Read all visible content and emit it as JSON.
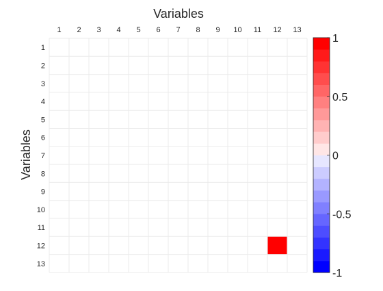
{
  "chart_data": {
    "type": "heatmap",
    "title": "",
    "xlabel": "Variables",
    "ylabel": "Variables",
    "x_categories": [
      "1",
      "2",
      "3",
      "4",
      "5",
      "6",
      "7",
      "8",
      "9",
      "10",
      "11",
      "12",
      "13"
    ],
    "y_categories": [
      "1",
      "2",
      "3",
      "4",
      "5",
      "6",
      "7",
      "8",
      "9",
      "10",
      "11",
      "12",
      "13"
    ],
    "x_axis_position": "top",
    "values": [
      [
        0,
        0,
        0,
        0,
        0,
        0,
        0,
        0,
        0,
        0,
        0,
        0,
        0
      ],
      [
        0,
        0,
        0,
        0,
        0,
        0,
        0,
        0,
        0,
        0,
        0,
        0,
        0
      ],
      [
        0,
        0,
        0,
        0,
        0,
        0,
        0,
        0,
        0,
        0,
        0,
        0,
        0
      ],
      [
        0,
        0,
        0,
        0,
        0,
        0,
        0,
        0,
        0,
        0,
        0,
        0,
        0
      ],
      [
        0,
        0,
        0,
        0,
        0,
        0,
        0,
        0,
        0,
        0,
        0,
        0,
        0
      ],
      [
        0,
        0,
        0,
        0,
        0,
        0,
        0,
        0,
        0,
        0,
        0,
        0,
        0
      ],
      [
        0,
        0,
        0,
        0,
        0,
        0,
        0,
        0,
        0,
        0,
        0,
        0,
        0
      ],
      [
        0,
        0,
        0,
        0,
        0,
        0,
        0,
        0,
        0,
        0,
        0,
        0,
        0
      ],
      [
        0,
        0,
        0,
        0,
        0,
        0,
        0,
        0,
        0,
        0,
        0,
        0,
        0
      ],
      [
        0,
        0,
        0,
        0,
        0,
        0,
        0,
        0,
        0,
        0,
        0,
        0,
        0
      ],
      [
        0,
        0,
        0,
        0,
        0,
        0,
        0,
        0,
        0,
        0,
        0,
        0,
        0
      ],
      [
        0,
        0,
        0,
        0,
        0,
        0,
        0,
        0,
        0,
        0,
        0,
        1,
        0
      ],
      [
        0,
        0,
        0,
        0,
        0,
        0,
        0,
        0,
        0,
        0,
        0,
        0,
        0
      ]
    ],
    "colorbar": {
      "range": [
        -1,
        1
      ],
      "ticks": [
        1,
        0.5,
        0,
        -0.5,
        -1
      ],
      "tick_labels": [
        "1",
        "0.5",
        "0",
        "-0.5",
        "-1"
      ],
      "levels": 20,
      "colors": {
        "positive": "#ff0000",
        "zero": "#ffffff",
        "negative": "#0000ff"
      }
    },
    "grid": true,
    "grid_color": "#ebebeb"
  }
}
